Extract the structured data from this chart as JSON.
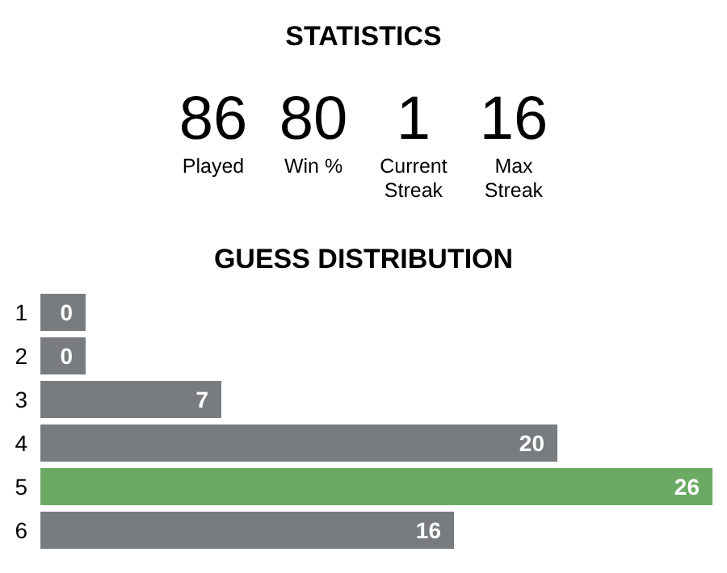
{
  "chart_data": [
    {
      "type": "other",
      "title": "STATISTICS",
      "categories": [
        "Played",
        "Win %",
        "Current Streak",
        "Max Streak"
      ],
      "values": [
        86,
        80,
        1,
        16
      ],
      "data_labels": true
    },
    {
      "type": "bar",
      "orientation": "horizontal",
      "title": "GUESS DISTRIBUTION",
      "categories": [
        "1",
        "2",
        "3",
        "4",
        "5",
        "6"
      ],
      "values": [
        0,
        0,
        7,
        20,
        26,
        16
      ],
      "colors": [
        "#787c7e",
        "#787c7e",
        "#787c7e",
        "#787c7e",
        "#6aaa64",
        "#787c7e"
      ],
      "data_labels": true
    }
  ]
}
